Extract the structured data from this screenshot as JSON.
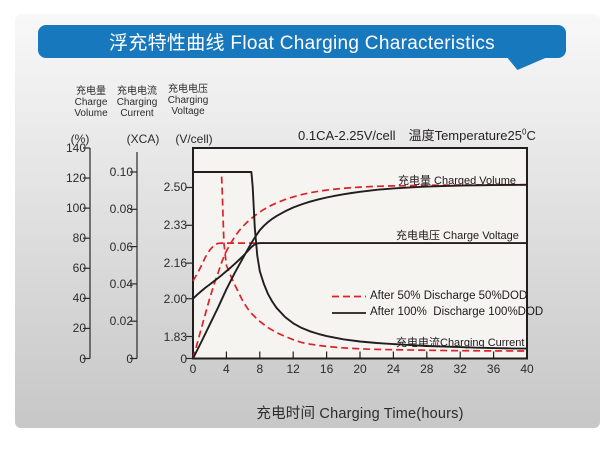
{
  "header": {
    "title": "浮充特性曲线 Float Charging Characteristics",
    "bg_color": "#1878be",
    "text_color": "#ffffff"
  },
  "axis_headers": [
    {
      "cn": "充电量",
      "en1": "Charge",
      "en2": "Volume"
    },
    {
      "cn": "充电电流",
      "en1": "Charging",
      "en2": "Current"
    },
    {
      "cn": "充电电压",
      "en1": "Charging",
      "en2": "Voltage"
    }
  ],
  "condition": {
    "main": "0.1CA-2.25V/cell",
    "temp_prefix": "温度Temperature25",
    "temp_sup": "0",
    "temp_suffix": "C"
  },
  "colors": {
    "banner_bg": "#1878be",
    "red": "#df2127",
    "black": "#221e1f",
    "plot_bg": "#f6f4f1",
    "axis": "#2b2b2b"
  },
  "chart_data": {
    "type": "line",
    "title": "浮充特性曲线 Float Charging Characteristics",
    "x_axis": {
      "label": "充电时间 Charging Time(hours)",
      "ticks": [
        0,
        4,
        8,
        12,
        16,
        20,
        24,
        28,
        32,
        36,
        40
      ],
      "range": [
        0,
        40
      ]
    },
    "y_axes": [
      {
        "id": "pct",
        "unit": "(%)",
        "ticks": [
          "140",
          "120",
          "100",
          "80",
          "60",
          "40",
          "20",
          "0"
        ],
        "range": [
          0,
          140
        ]
      },
      {
        "id": "xca",
        "unit": "(XCA)",
        "ticks": [
          "0.10",
          "0.08",
          "0.06",
          "0.04",
          "0.02",
          "0"
        ],
        "range": [
          0,
          0.1
        ]
      },
      {
        "id": "v",
        "unit": "(V/cell)",
        "ticks": [
          "2.50",
          "2.33",
          "2.16",
          "2.00",
          "1.83",
          "0"
        ],
        "range": [
          1.83,
          2.5
        ]
      }
    ],
    "annotations": {
      "volume_label": "充电量 Charged Volume",
      "voltage_label": "充电电压 Charge Voltage",
      "current_label": "充电电流Charging Current"
    },
    "legend": [
      {
        "label": "After 50% Discharge 50%DOD",
        "style": "dashed",
        "color": "#df2127"
      },
      {
        "label": "After 100%  Discharge 100%DOD",
        "style": "solid",
        "color": "#221e1f"
      }
    ],
    "series": [
      {
        "name": "charging-current-50dod",
        "axis": "xca",
        "style": "dashed",
        "color": "#df2127",
        "points": [
          [
            0,
            0.1
          ],
          [
            3.4,
            0.1
          ],
          [
            3.5,
            0.09
          ],
          [
            3.7,
            0.062
          ],
          [
            4,
            0.05
          ],
          [
            4.5,
            0.0445
          ],
          [
            5,
            0.0395
          ],
          [
            5.5,
            0.035
          ],
          [
            6,
            0.0305
          ],
          [
            6.5,
            0.027
          ],
          [
            7,
            0.0242
          ],
          [
            7.5,
            0.022
          ],
          [
            8,
            0.0199
          ],
          [
            9,
            0.0165
          ],
          [
            10,
            0.0139
          ],
          [
            11,
            0.0119
          ],
          [
            12,
            0.0101
          ],
          [
            13,
            0.0086
          ],
          [
            14,
            0.0077
          ],
          [
            15,
            0.007
          ],
          [
            16,
            0.0065
          ],
          [
            18,
            0.0057
          ],
          [
            20,
            0.0052
          ],
          [
            22,
            0.0049
          ],
          [
            24,
            0.0047
          ],
          [
            28,
            0.0044
          ],
          [
            32,
            0.0042
          ],
          [
            36,
            0.0041
          ],
          [
            40,
            0.004
          ]
        ]
      },
      {
        "name": "charge-voltage-50dod",
        "axis": "v",
        "style": "dashed",
        "color": "#df2127",
        "points": [
          [
            0,
            2.08
          ],
          [
            0.5,
            2.112
          ],
          [
            1,
            2.148
          ],
          [
            1.5,
            2.188
          ],
          [
            2,
            2.218
          ],
          [
            2.5,
            2.24
          ],
          [
            3,
            2.249
          ],
          [
            3.5,
            2.25
          ],
          [
            7.6,
            2.25
          ]
        ]
      },
      {
        "name": "charged-volume-50dod",
        "axis": "pct",
        "style": "dashed",
        "color": "#df2127",
        "points": [
          [
            0,
            0
          ],
          [
            0.5,
            10
          ],
          [
            1,
            20
          ],
          [
            1.5,
            30
          ],
          [
            2,
            40
          ],
          [
            2.5,
            49
          ],
          [
            3,
            57
          ],
          [
            3.5,
            65
          ],
          [
            4,
            71.5
          ],
          [
            4.5,
            76.5
          ],
          [
            5,
            81
          ],
          [
            5.5,
            84.8
          ],
          [
            6,
            88
          ],
          [
            6.5,
            90.8
          ],
          [
            7,
            93.2
          ],
          [
            7.5,
            95.4
          ],
          [
            8,
            97.4
          ],
          [
            8.5,
            99.2
          ],
          [
            9,
            100.8
          ],
          [
            10,
            103.5
          ],
          [
            11,
            105.7
          ],
          [
            12,
            107.5
          ],
          [
            13,
            109
          ],
          [
            14,
            110.2
          ],
          [
            15,
            111.2
          ],
          [
            16,
            112
          ],
          [
            18,
            113.2
          ],
          [
            20,
            114
          ],
          [
            22,
            114.5
          ],
          [
            24,
            114.8
          ],
          [
            26,
            115
          ],
          [
            28,
            115.2
          ],
          [
            32,
            115.4
          ],
          [
            36,
            115.5
          ],
          [
            40,
            115.6
          ]
        ]
      },
      {
        "name": "charging-current-100dod",
        "axis": "xca",
        "style": "solid",
        "color": "#221e1f",
        "points": [
          [
            0,
            0.1
          ],
          [
            7.0,
            0.1
          ],
          [
            7.15,
            0.092
          ],
          [
            7.4,
            0.07
          ],
          [
            7.7,
            0.055
          ],
          [
            8,
            0.0468
          ],
          [
            8.5,
            0.0398
          ],
          [
            9,
            0.0345
          ],
          [
            9.5,
            0.0305
          ],
          [
            10,
            0.0272
          ],
          [
            11,
            0.0223
          ],
          [
            12,
            0.0189
          ],
          [
            13,
            0.0164
          ],
          [
            14,
            0.0146
          ],
          [
            15,
            0.0132
          ],
          [
            16,
            0.012
          ],
          [
            18,
            0.0103
          ],
          [
            20,
            0.0091
          ],
          [
            22,
            0.0083
          ],
          [
            24,
            0.0077
          ],
          [
            26,
            0.0072
          ],
          [
            28,
            0.0067
          ],
          [
            30,
            0.0064
          ],
          [
            32,
            0.0061
          ],
          [
            34,
            0.0058
          ],
          [
            36,
            0.0056
          ],
          [
            38,
            0.0054
          ],
          [
            40,
            0.0053
          ]
        ]
      },
      {
        "name": "charge-voltage-100dod",
        "axis": "v",
        "style": "solid",
        "color": "#221e1f",
        "points": [
          [
            0,
            2.0
          ],
          [
            0.5,
            2.018
          ],
          [
            1,
            2.034
          ],
          [
            1.5,
            2.05
          ],
          [
            2,
            2.064
          ],
          [
            2.5,
            2.078
          ],
          [
            3,
            2.093
          ],
          [
            3.5,
            2.108
          ],
          [
            4,
            2.124
          ],
          [
            4.5,
            2.14
          ],
          [
            5,
            2.157
          ],
          [
            5.5,
            2.174
          ],
          [
            6,
            2.192
          ],
          [
            6.5,
            2.212
          ],
          [
            7,
            2.232
          ],
          [
            7.3,
            2.242
          ],
          [
            7.6,
            2.248
          ],
          [
            8,
            2.25
          ],
          [
            40,
            2.25
          ]
        ]
      },
      {
        "name": "charged-volume-100dod",
        "axis": "pct",
        "style": "solid",
        "color": "#221e1f",
        "points": [
          [
            0,
            0
          ],
          [
            1,
            11
          ],
          [
            2,
            22.5
          ],
          [
            3,
            34
          ],
          [
            4,
            46
          ],
          [
            5,
            57
          ],
          [
            6,
            67
          ],
          [
            6.5,
            72
          ],
          [
            7,
            76.8
          ],
          [
            7.5,
            81.3
          ],
          [
            8,
            85.3
          ],
          [
            8.5,
            88.3
          ],
          [
            9,
            90.8
          ],
          [
            9.5,
            92.9
          ],
          [
            10,
            94.7
          ],
          [
            11,
            97.8
          ],
          [
            12,
            100.4
          ],
          [
            13,
            102.5
          ],
          [
            14,
            104.3
          ],
          [
            15,
            105.8
          ],
          [
            16,
            107.1
          ],
          [
            17,
            108.2
          ],
          [
            18,
            109.2
          ],
          [
            19,
            110.1
          ],
          [
            20,
            110.9
          ],
          [
            22,
            112.2
          ],
          [
            24,
            113.1
          ],
          [
            26,
            113.8
          ],
          [
            28,
            114.3
          ],
          [
            30,
            114.7
          ],
          [
            32,
            115
          ],
          [
            34,
            115.2
          ],
          [
            36,
            115.35
          ],
          [
            38,
            115.45
          ],
          [
            40,
            115.5
          ]
        ]
      }
    ]
  }
}
